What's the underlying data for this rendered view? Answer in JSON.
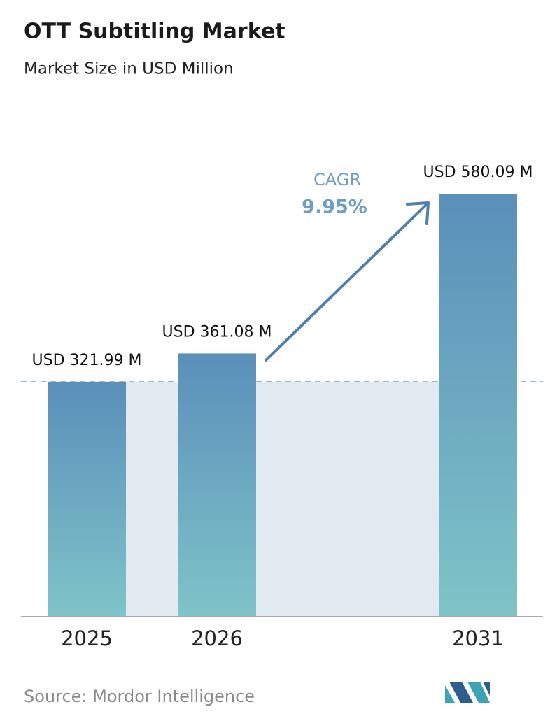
{
  "chart_data": {
    "type": "bar",
    "title": "OTT Subtitling Market",
    "subtitle": "Market Size in USD Million",
    "categories": [
      "2025",
      "2026",
      "2031"
    ],
    "values": [
      321.99,
      361.08,
      580.09
    ],
    "value_labels": [
      "USD 321.99 M",
      "USD 361.08 M",
      "USD 580.09 M"
    ],
    "annotation": {
      "label": "CAGR",
      "value": "9.95%"
    },
    "source": "Source:  Mordor Intelligence"
  }
}
